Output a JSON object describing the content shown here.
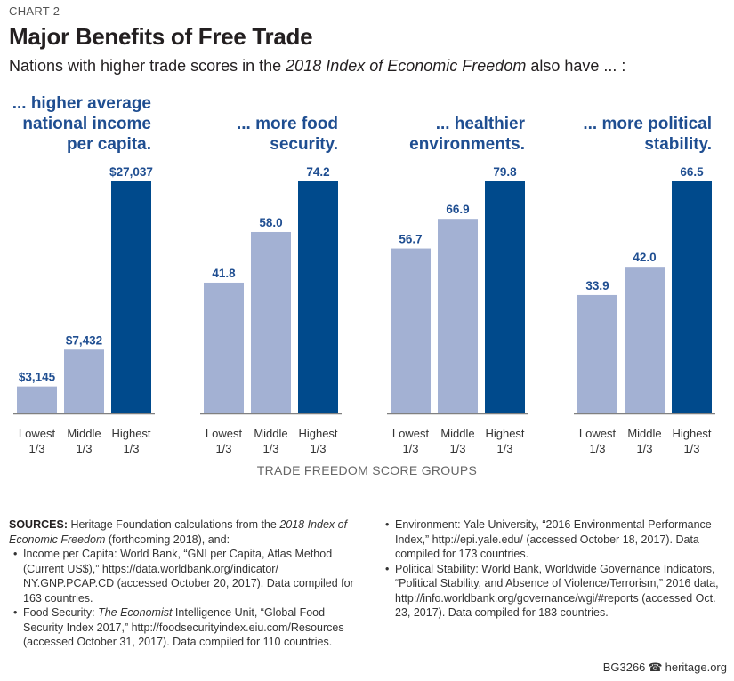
{
  "header": {
    "kicker": "CHART 2",
    "title": "Major Benefits of Free Trade",
    "subtitle_pre": "Nations with higher trade scores in the ",
    "subtitle_italic": "2018 Index of Economic Freedom",
    "subtitle_post": " also have ... :"
  },
  "chart_data": [
    {
      "type": "bar",
      "title": "... higher average national income per capita.",
      "title_lines": [
        "... higher average",
        "national income",
        "per capita."
      ],
      "categories": [
        "Lowest 1/3",
        "Middle 1/3",
        "Highest 1/3"
      ],
      "values": [
        3145,
        7432,
        27037
      ],
      "labels": [
        "$3,145",
        "$7,432",
        "$27,037"
      ],
      "xlabel": "TRADE FREEDOM SCORE GROUPS",
      "ylabel": "",
      "ylim": [
        0,
        27037
      ]
    },
    {
      "type": "bar",
      "title": "... more food security.",
      "title_lines": [
        "... more food",
        "security."
      ],
      "categories": [
        "Lowest 1/3",
        "Middle 1/3",
        "Highest 1/3"
      ],
      "values": [
        41.8,
        58.0,
        74.2
      ],
      "labels": [
        "41.8",
        "58.0",
        "74.2"
      ],
      "xlabel": "TRADE FREEDOM SCORE GROUPS",
      "ylabel": "",
      "ylim": [
        0,
        74.2
      ]
    },
    {
      "type": "bar",
      "title": "... healthier environments.",
      "title_lines": [
        "... healthier",
        "environments."
      ],
      "categories": [
        "Lowest 1/3",
        "Middle 1/3",
        "Highest 1/3"
      ],
      "values": [
        56.7,
        66.9,
        79.8
      ],
      "labels": [
        "56.7",
        "66.9",
        "79.8"
      ],
      "xlabel": "TRADE FREEDOM SCORE GROUPS",
      "ylabel": "",
      "ylim": [
        0,
        79.8
      ]
    },
    {
      "type": "bar",
      "title": "... more political stability.",
      "title_lines": [
        "... more political",
        "stability."
      ],
      "categories": [
        "Lowest 1/3",
        "Middle 1/3",
        "Highest 1/3"
      ],
      "values": [
        33.9,
        42.0,
        66.5
      ],
      "labels": [
        "33.9",
        "42.0",
        "66.5"
      ],
      "xlabel": "TRADE FREEDOM SCORE GROUPS",
      "ylabel": "",
      "ylim": [
        0,
        66.5
      ]
    }
  ],
  "category_lines": [
    [
      "Lowest",
      "1/3"
    ],
    [
      "Middle",
      "1/3"
    ],
    [
      "Highest",
      "1/3"
    ]
  ],
  "xaxis_title": "TRADE FREEDOM SCORE GROUPS",
  "colors": {
    "light_bar": "#a3b1d3",
    "dark_bar": "#004a8c",
    "label": "#1f4e91",
    "axis": "#808080"
  },
  "sources": {
    "lead_bold": "SOURCES:",
    "lead_text": " Heritage Foundation calculations from the ",
    "lead_italic": "2018 Index of Economic Freedom",
    "lead_tail": " (forthcoming 2018), and:",
    "income": "Income per Capita: World Bank, “GNI per Capita, Atlas Method (Current US$),” https://data.worldbank.org/indicator/ NY.GNP.PCAP.CD (accessed October 20, 2017). Data compiled for 163 countries.",
    "food_pre": "Food Security: ",
    "food_italic": "The Economist",
    "food_post": " Intelligence Unit, “Global Food Security Index 2017,” http://foodsecurityindex.eiu.com/Resources (accessed October 31, 2017). Data compiled for 110 countries.",
    "environment": "Environment: Yale University, “2016 Environmental Performance Index,” http://epi.yale.edu/ (accessed October 18, 2017). Data compiled for 173 countries.",
    "political": "Political Stability: World Bank, Worldwide Governance Indicators, “Political Stability, and Absence of Violence/Terrorism,” 2016 data, http://info.worldbank.org/governance/wgi/#reports (accessed Oct. 23, 2017). Data compiled for 183 countries."
  },
  "footer": {
    "code": "BG3266",
    "icon": "liberty-bell-icon",
    "site": "heritage.org"
  }
}
